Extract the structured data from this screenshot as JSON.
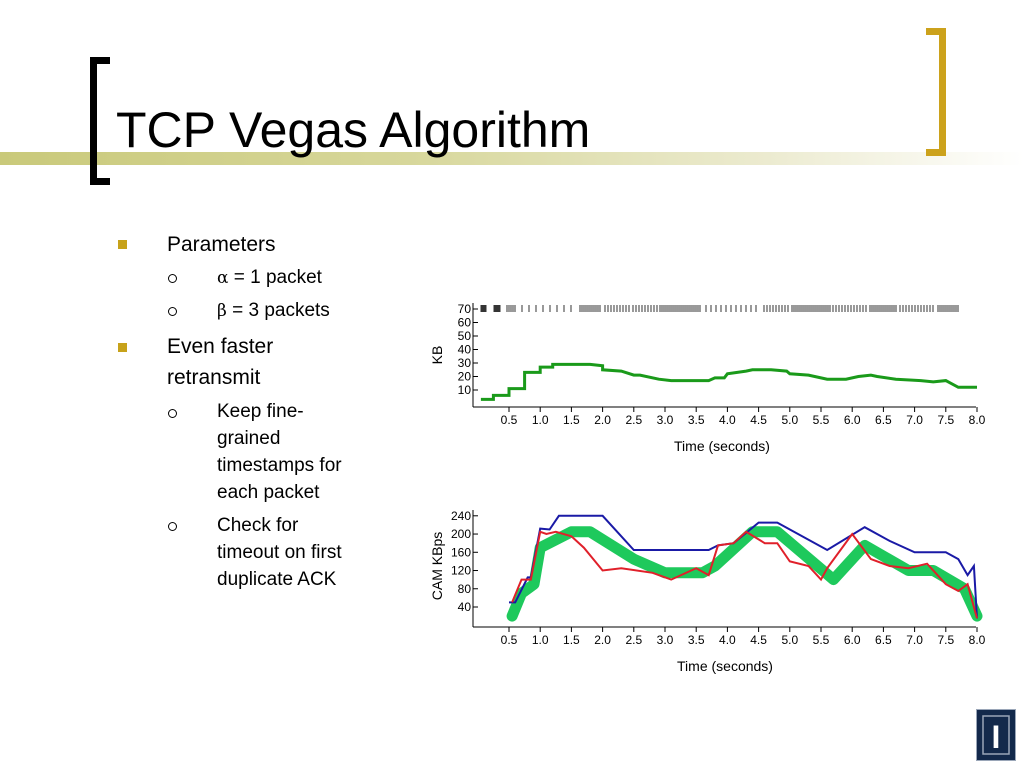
{
  "title": "TCP Vegas Algorithm",
  "bullets": {
    "parameters": "Parameters",
    "alpha_symbol": "α",
    "alpha_text": " = 1 packet",
    "beta_symbol": "β",
    "beta_text": " = 3 packets",
    "faster_line1": "Even faster",
    "faster_line2": "retransmit",
    "timestamps_lines": [
      "Keep fine-",
      "grained",
      "timestamps for",
      "each packet"
    ],
    "timeout_lines": [
      "Check for",
      "timeout on first",
      "duplicate ACK"
    ]
  },
  "logo": {
    "letter": "I"
  },
  "colors": {
    "accent": "#cca21c",
    "green": "#1ec95c",
    "blue": "#1a1aa6",
    "red": "#e0202a",
    "trace_green": "#1a9a1a"
  },
  "chart_data": [
    {
      "type": "line",
      "title": "",
      "xlabel": "Time (seconds)",
      "ylabel": "KB",
      "xlim": [
        0,
        8.0
      ],
      "ylim": [
        0,
        70
      ],
      "x_ticks": [
        "0.5",
        "1.0",
        "1.5",
        "2.0",
        "2.5",
        "3.0",
        "3.5",
        "4.0",
        "4.5",
        "5.0",
        "5.5",
        "6.0",
        "6.5",
        "7.0",
        "7.5",
        "8.0"
      ],
      "y_ticks": [
        "10",
        "20",
        "30",
        "40",
        "50",
        "60",
        "70"
      ],
      "series": [
        {
          "color": "#1a9a1a",
          "x": [
            0.05,
            0.25,
            0.25,
            0.5,
            0.5,
            0.75,
            0.75,
            1.0,
            1.0,
            1.2,
            1.2,
            1.5,
            1.5,
            1.8,
            2.0,
            2.0,
            2.3,
            2.5,
            2.6,
            2.9,
            3.1,
            3.3,
            3.5,
            3.7,
            3.8,
            3.95,
            4.0,
            4.3,
            4.4,
            4.7,
            4.95,
            5.0,
            5.3,
            5.5,
            5.6,
            5.9,
            6.1,
            6.3,
            6.4,
            6.7,
            7.1,
            7.3,
            7.5,
            7.7,
            8.0
          ],
          "y": [
            3,
            3,
            6,
            6,
            11,
            11,
            23,
            23,
            27,
            27,
            29,
            29,
            29,
            29,
            28,
            25,
            24,
            21,
            21,
            18,
            17,
            17,
            17,
            17,
            19,
            19,
            22,
            24,
            25,
            25,
            24,
            22,
            21,
            19,
            18,
            18,
            20,
            21,
            20,
            18,
            17,
            16,
            17,
            12,
            12
          ]
        }
      ],
      "transmission_marks": "packet send ticks across the top"
    },
    {
      "type": "line",
      "title": "",
      "xlabel": "Time (seconds)",
      "ylabel": "CAM KBps",
      "xlim": [
        0,
        8.0
      ],
      "ylim": [
        0,
        240
      ],
      "x_ticks": [
        "0.5",
        "1.0",
        "1.5",
        "2.0",
        "2.5",
        "3.0",
        "3.5",
        "4.0",
        "4.5",
        "5.0",
        "5.5",
        "6.0",
        "6.5",
        "7.0",
        "7.5",
        "8.0"
      ],
      "y_ticks": [
        "40",
        "80",
        "120",
        "160",
        "200",
        "240"
      ],
      "series": [
        {
          "kind": "band",
          "color": "#1ec95c",
          "x": [
            0.55,
            0.7,
            0.9,
            1.0,
            1.5,
            1.8,
            2.5,
            3.0,
            3.6,
            3.8,
            4.4,
            4.8,
            5.7,
            6.2,
            6.9,
            7.3,
            7.8,
            8.0
          ],
          "y": [
            20,
            70,
            90,
            170,
            205,
            205,
            145,
            115,
            115,
            130,
            205,
            205,
            100,
            175,
            120,
            120,
            80,
            20
          ],
          "band_width": 28
        },
        {
          "color": "#1a1aa6",
          "x": [
            0.5,
            0.6,
            0.8,
            0.85,
            1.0,
            1.15,
            1.3,
            1.6,
            2.0,
            2.5,
            3.0,
            3.7,
            3.85,
            4.1,
            4.5,
            4.8,
            5.6,
            6.2,
            6.6,
            7.0,
            7.5,
            7.7,
            7.85,
            7.95,
            8.0
          ],
          "y": [
            50,
            50,
            105,
            105,
            212,
            210,
            240,
            240,
            240,
            165,
            165,
            165,
            175,
            180,
            225,
            225,
            165,
            215,
            185,
            160,
            160,
            145,
            110,
            130,
            15
          ]
        },
        {
          "color": "#e0202a",
          "x": [
            0.55,
            0.7,
            0.85,
            1.0,
            1.1,
            1.25,
            1.5,
            1.7,
            2.0,
            2.3,
            2.8,
            3.1,
            3.5,
            3.7,
            3.85,
            4.1,
            4.3,
            4.6,
            4.8,
            5.0,
            5.3,
            5.5,
            5.6,
            6.0,
            6.3,
            6.6,
            6.9,
            7.2,
            7.5,
            7.7,
            7.85,
            8.0
          ],
          "y": [
            50,
            100,
            100,
            205,
            200,
            205,
            195,
            170,
            120,
            125,
            115,
            100,
            125,
            110,
            175,
            180,
            205,
            180,
            180,
            140,
            130,
            100,
            125,
            200,
            145,
            130,
            125,
            135,
            90,
            75,
            90,
            15
          ]
        }
      ]
    }
  ]
}
